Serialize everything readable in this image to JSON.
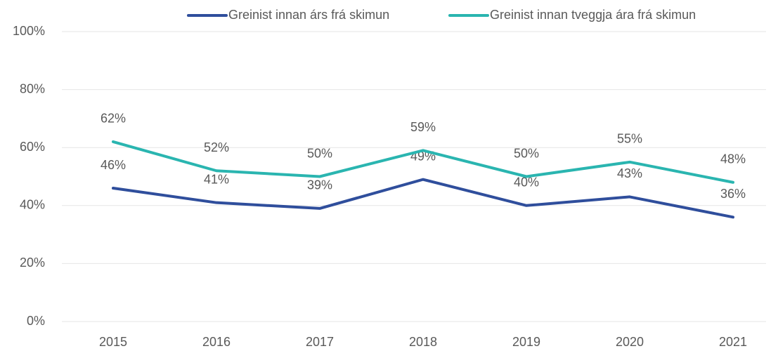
{
  "chart_data": {
    "type": "line",
    "categories": [
      "2015",
      "2016",
      "2017",
      "2018",
      "2019",
      "2020",
      "2021"
    ],
    "series": [
      {
        "name": "Greinist innan árs frá skimun",
        "color": "#2f4e9c",
        "values": [
          46,
          41,
          39,
          49,
          40,
          43,
          36
        ],
        "value_labels": [
          "46%",
          "41%",
          "39%",
          "49%",
          "40%",
          "43%",
          "36%"
        ]
      },
      {
        "name": "Greinist innan tveggja ára frá skimun",
        "color": "#2ab5b0",
        "values": [
          62,
          52,
          50,
          59,
          50,
          55,
          48
        ],
        "value_labels": [
          "62%",
          "52%",
          "50%",
          "59%",
          "50%",
          "55%",
          "48%"
        ]
      }
    ],
    "ylim": [
      0,
      100
    ],
    "yticks": [
      {
        "value": 0,
        "label": "0%"
      },
      {
        "value": 20,
        "label": "20%"
      },
      {
        "value": 40,
        "label": "40%"
      },
      {
        "value": 60,
        "label": "60%"
      },
      {
        "value": 80,
        "label": "80%"
      },
      {
        "value": 100,
        "label": "100%"
      }
    ],
    "grid": true,
    "legend": "top"
  }
}
